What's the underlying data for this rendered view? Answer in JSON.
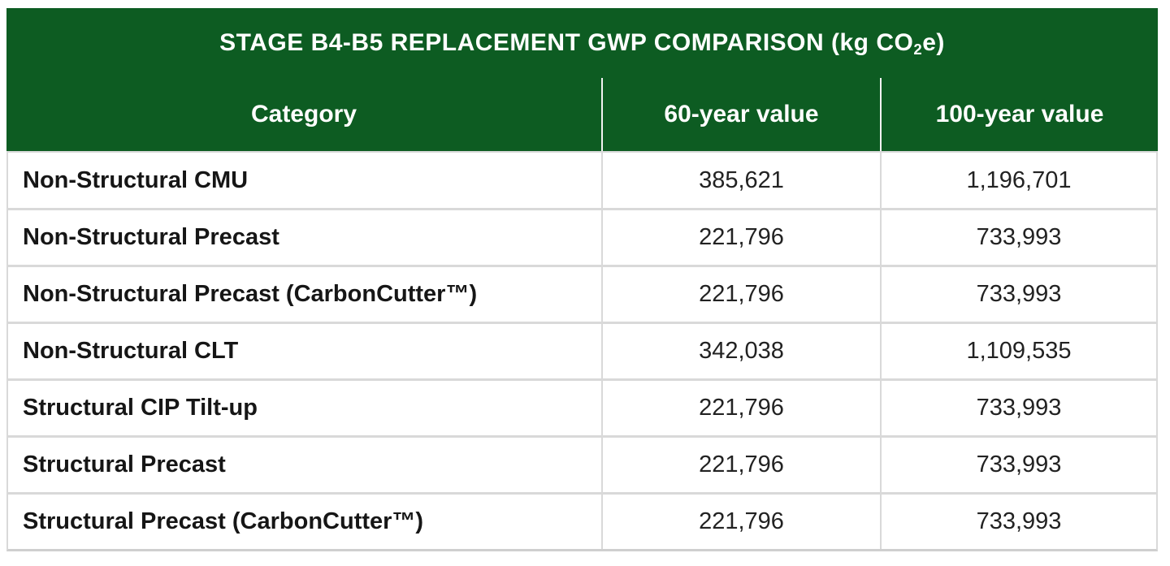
{
  "title": {
    "prefix": "STAGE B4-B5 REPLACEMENT GWP COMPARISON (kg CO",
    "subscript": "2",
    "suffix": "e)"
  },
  "columns": {
    "category": "Category",
    "year60": "60-year value",
    "year100": "100-year value"
  },
  "rows": [
    {
      "category": "Non-Structural CMU",
      "v60": "385,621",
      "v100": "1,196,701"
    },
    {
      "category": "Non-Structural Precast",
      "v60": "221,796",
      "v100": "733,993"
    },
    {
      "category": "Non-Structural Precast (CarbonCutter™)",
      "v60": "221,796",
      "v100": "733,993"
    },
    {
      "category": "Non-Structural CLT",
      "v60": "342,038",
      "v100": "1,109,535"
    },
    {
      "category": "Structural CIP Tilt-up",
      "v60": "221,796",
      "v100": "733,993"
    },
    {
      "category": "Structural Precast",
      "v60": "221,796",
      "v100": "733,993"
    },
    {
      "category": "Structural Precast (CarbonCutter™)",
      "v60": "221,796",
      "v100": "733,993"
    }
  ],
  "colors": {
    "header_green": "#0d5c22",
    "row_divider": "#d9d9d9",
    "text_dark": "#222222"
  },
  "chart_data": {
    "type": "table",
    "title": "STAGE B4-B5 REPLACEMENT GWP COMPARISON (kg CO2e)",
    "columns": [
      "Category",
      "60-year value",
      "100-year value"
    ],
    "rows": [
      [
        "Non-Structural CMU",
        385621,
        1196701
      ],
      [
        "Non-Structural Precast",
        221796,
        733993
      ],
      [
        "Non-Structural Precast (CarbonCutter™)",
        221796,
        733993
      ],
      [
        "Non-Structural CLT",
        342038,
        1109535
      ],
      [
        "Structural CIP Tilt-up",
        221796,
        733993
      ],
      [
        "Structural Precast",
        221796,
        733993
      ],
      [
        "Structural Precast (CarbonCutter™)",
        221796,
        733993
      ]
    ]
  }
}
